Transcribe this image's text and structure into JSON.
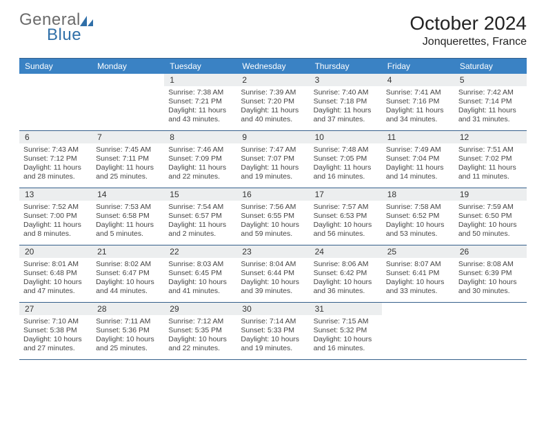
{
  "brand": {
    "part1": "General",
    "part2": "Blue"
  },
  "header": {
    "month": "October 2024",
    "location": "Jonquerettes, France"
  },
  "colors": {
    "header_band": "#3a82c4",
    "cell_grey": "#eceeef",
    "rule": "#335e8a",
    "brand_grey": "#6b6b6b",
    "brand_blue": "#2f6fa8"
  },
  "daynames": [
    "Sunday",
    "Monday",
    "Tuesday",
    "Wednesday",
    "Thursday",
    "Friday",
    "Saturday"
  ],
  "weeks": [
    [
      null,
      null,
      {
        "n": "1",
        "sr": "Sunrise: 7:38 AM",
        "ss": "Sunset: 7:21 PM",
        "d1": "Daylight: 11 hours",
        "d2": "and 43 minutes."
      },
      {
        "n": "2",
        "sr": "Sunrise: 7:39 AM",
        "ss": "Sunset: 7:20 PM",
        "d1": "Daylight: 11 hours",
        "d2": "and 40 minutes."
      },
      {
        "n": "3",
        "sr": "Sunrise: 7:40 AM",
        "ss": "Sunset: 7:18 PM",
        "d1": "Daylight: 11 hours",
        "d2": "and 37 minutes."
      },
      {
        "n": "4",
        "sr": "Sunrise: 7:41 AM",
        "ss": "Sunset: 7:16 PM",
        "d1": "Daylight: 11 hours",
        "d2": "and 34 minutes."
      },
      {
        "n": "5",
        "sr": "Sunrise: 7:42 AM",
        "ss": "Sunset: 7:14 PM",
        "d1": "Daylight: 11 hours",
        "d2": "and 31 minutes."
      }
    ],
    [
      {
        "n": "6",
        "sr": "Sunrise: 7:43 AM",
        "ss": "Sunset: 7:12 PM",
        "d1": "Daylight: 11 hours",
        "d2": "and 28 minutes."
      },
      {
        "n": "7",
        "sr": "Sunrise: 7:45 AM",
        "ss": "Sunset: 7:11 PM",
        "d1": "Daylight: 11 hours",
        "d2": "and 25 minutes."
      },
      {
        "n": "8",
        "sr": "Sunrise: 7:46 AM",
        "ss": "Sunset: 7:09 PM",
        "d1": "Daylight: 11 hours",
        "d2": "and 22 minutes."
      },
      {
        "n": "9",
        "sr": "Sunrise: 7:47 AM",
        "ss": "Sunset: 7:07 PM",
        "d1": "Daylight: 11 hours",
        "d2": "and 19 minutes."
      },
      {
        "n": "10",
        "sr": "Sunrise: 7:48 AM",
        "ss": "Sunset: 7:05 PM",
        "d1": "Daylight: 11 hours",
        "d2": "and 16 minutes."
      },
      {
        "n": "11",
        "sr": "Sunrise: 7:49 AM",
        "ss": "Sunset: 7:04 PM",
        "d1": "Daylight: 11 hours",
        "d2": "and 14 minutes."
      },
      {
        "n": "12",
        "sr": "Sunrise: 7:51 AM",
        "ss": "Sunset: 7:02 PM",
        "d1": "Daylight: 11 hours",
        "d2": "and 11 minutes."
      }
    ],
    [
      {
        "n": "13",
        "sr": "Sunrise: 7:52 AM",
        "ss": "Sunset: 7:00 PM",
        "d1": "Daylight: 11 hours",
        "d2": "and 8 minutes."
      },
      {
        "n": "14",
        "sr": "Sunrise: 7:53 AM",
        "ss": "Sunset: 6:58 PM",
        "d1": "Daylight: 11 hours",
        "d2": "and 5 minutes."
      },
      {
        "n": "15",
        "sr": "Sunrise: 7:54 AM",
        "ss": "Sunset: 6:57 PM",
        "d1": "Daylight: 11 hours",
        "d2": "and 2 minutes."
      },
      {
        "n": "16",
        "sr": "Sunrise: 7:56 AM",
        "ss": "Sunset: 6:55 PM",
        "d1": "Daylight: 10 hours",
        "d2": "and 59 minutes."
      },
      {
        "n": "17",
        "sr": "Sunrise: 7:57 AM",
        "ss": "Sunset: 6:53 PM",
        "d1": "Daylight: 10 hours",
        "d2": "and 56 minutes."
      },
      {
        "n": "18",
        "sr": "Sunrise: 7:58 AM",
        "ss": "Sunset: 6:52 PM",
        "d1": "Daylight: 10 hours",
        "d2": "and 53 minutes."
      },
      {
        "n": "19",
        "sr": "Sunrise: 7:59 AM",
        "ss": "Sunset: 6:50 PM",
        "d1": "Daylight: 10 hours",
        "d2": "and 50 minutes."
      }
    ],
    [
      {
        "n": "20",
        "sr": "Sunrise: 8:01 AM",
        "ss": "Sunset: 6:48 PM",
        "d1": "Daylight: 10 hours",
        "d2": "and 47 minutes."
      },
      {
        "n": "21",
        "sr": "Sunrise: 8:02 AM",
        "ss": "Sunset: 6:47 PM",
        "d1": "Daylight: 10 hours",
        "d2": "and 44 minutes."
      },
      {
        "n": "22",
        "sr": "Sunrise: 8:03 AM",
        "ss": "Sunset: 6:45 PM",
        "d1": "Daylight: 10 hours",
        "d2": "and 41 minutes."
      },
      {
        "n": "23",
        "sr": "Sunrise: 8:04 AM",
        "ss": "Sunset: 6:44 PM",
        "d1": "Daylight: 10 hours",
        "d2": "and 39 minutes."
      },
      {
        "n": "24",
        "sr": "Sunrise: 8:06 AM",
        "ss": "Sunset: 6:42 PM",
        "d1": "Daylight: 10 hours",
        "d2": "and 36 minutes."
      },
      {
        "n": "25",
        "sr": "Sunrise: 8:07 AM",
        "ss": "Sunset: 6:41 PM",
        "d1": "Daylight: 10 hours",
        "d2": "and 33 minutes."
      },
      {
        "n": "26",
        "sr": "Sunrise: 8:08 AM",
        "ss": "Sunset: 6:39 PM",
        "d1": "Daylight: 10 hours",
        "d2": "and 30 minutes."
      }
    ],
    [
      {
        "n": "27",
        "sr": "Sunrise: 7:10 AM",
        "ss": "Sunset: 5:38 PM",
        "d1": "Daylight: 10 hours",
        "d2": "and 27 minutes."
      },
      {
        "n": "28",
        "sr": "Sunrise: 7:11 AM",
        "ss": "Sunset: 5:36 PM",
        "d1": "Daylight: 10 hours",
        "d2": "and 25 minutes."
      },
      {
        "n": "29",
        "sr": "Sunrise: 7:12 AM",
        "ss": "Sunset: 5:35 PM",
        "d1": "Daylight: 10 hours",
        "d2": "and 22 minutes."
      },
      {
        "n": "30",
        "sr": "Sunrise: 7:14 AM",
        "ss": "Sunset: 5:33 PM",
        "d1": "Daylight: 10 hours",
        "d2": "and 19 minutes."
      },
      {
        "n": "31",
        "sr": "Sunrise: 7:15 AM",
        "ss": "Sunset: 5:32 PM",
        "d1": "Daylight: 10 hours",
        "d2": "and 16 minutes."
      },
      null,
      null
    ]
  ]
}
